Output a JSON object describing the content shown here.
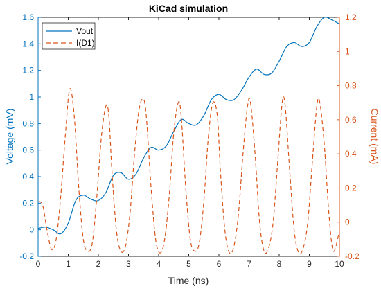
{
  "chart_data": {
    "type": "line",
    "title": "KiCad simulation",
    "xlabel": "Time (ns)",
    "ylabel_left": "Voltage (mV)",
    "ylabel_right": "Current (mA)",
    "xlim": [
      0,
      10
    ],
    "ylim_left": [
      -0.2,
      1.6
    ],
    "ylim_right": [
      -0.2,
      1.2
    ],
    "x_ticks": [
      "0",
      "1",
      "2",
      "3",
      "4",
      "5",
      "6",
      "7",
      "8",
      "9",
      "10"
    ],
    "y_left_ticks": [
      "-0.2",
      "0",
      "0.2",
      "0.4",
      "0.6",
      "0.8",
      "1",
      "1.2",
      "1.4",
      "1.6"
    ],
    "y_right_ticks": [
      "-0.2",
      "0",
      "0.2",
      "0.4",
      "0.6",
      "0.8",
      "1",
      "1.2"
    ],
    "legend_position": "top-left",
    "grid": false,
    "colors": {
      "left_axis": "#0072BD",
      "right_axis": "#D95319"
    },
    "series": [
      {
        "name": "Vout",
        "axis": "left",
        "style": "solid",
        "color": "#0072BD",
        "x": [
          0,
          0.25,
          0.5,
          0.75,
          1,
          1.25,
          1.5,
          1.75,
          2,
          2.25,
          2.5,
          2.75,
          3,
          3.25,
          3.5,
          3.75,
          4,
          4.25,
          4.5,
          4.75,
          5,
          5.25,
          5.5,
          5.75,
          6,
          6.25,
          6.5,
          6.75,
          7,
          7.25,
          7.5,
          7.75,
          8,
          8.25,
          8.5,
          8.75,
          9,
          9.25,
          9.5,
          9.75,
          10
        ],
        "y": [
          0.01,
          0.02,
          0.0,
          -0.03,
          0.05,
          0.22,
          0.26,
          0.23,
          0.22,
          0.28,
          0.41,
          0.43,
          0.38,
          0.42,
          0.54,
          0.62,
          0.6,
          0.63,
          0.74,
          0.83,
          0.8,
          0.79,
          0.86,
          0.98,
          1.02,
          0.98,
          0.98,
          1.05,
          1.15,
          1.21,
          1.17,
          1.18,
          1.27,
          1.38,
          1.41,
          1.38,
          1.41,
          1.53,
          1.6,
          1.58,
          1.55
        ]
      },
      {
        "name": "I(D1)",
        "axis": "right",
        "style": "dashed",
        "color": "#D95319",
        "x": [
          0,
          0.15,
          0.3,
          0.45,
          0.6,
          0.75,
          0.9,
          1.05,
          1.2,
          1.35,
          1.5,
          1.65,
          1.8,
          1.95,
          2.1,
          2.25,
          2.35,
          2.45,
          2.6,
          2.75,
          2.9,
          3.05,
          3.2,
          3.35,
          3.5,
          3.6,
          3.75,
          3.9,
          4.05,
          4.2,
          4.35,
          4.5,
          4.65,
          4.75,
          4.9,
          5.05,
          5.2,
          5.35,
          5.5,
          5.65,
          5.8,
          5.95,
          6.05,
          6.2,
          6.35,
          6.5,
          6.65,
          6.8,
          6.95,
          7.05,
          7.2,
          7.35,
          7.5,
          7.65,
          7.8,
          7.95,
          8.1,
          8.2,
          8.35,
          8.5,
          8.65,
          8.8,
          8.95,
          9.1,
          9.25,
          9.35,
          9.5,
          9.65,
          9.8,
          10
        ],
        "y": [
          0.12,
          0.1,
          -0.05,
          -0.16,
          -0.1,
          0.15,
          0.5,
          0.78,
          0.62,
          0.2,
          -0.1,
          -0.17,
          -0.12,
          0.15,
          0.5,
          0.68,
          0.62,
          0.3,
          -0.05,
          -0.17,
          -0.14,
          0.05,
          0.4,
          0.66,
          0.72,
          0.6,
          0.2,
          -0.1,
          -0.18,
          -0.1,
          0.15,
          0.52,
          0.7,
          0.62,
          0.2,
          -0.1,
          -0.17,
          -0.12,
          0.12,
          0.5,
          0.7,
          0.62,
          0.3,
          -0.05,
          -0.18,
          -0.14,
          0.05,
          0.4,
          0.68,
          0.7,
          0.4,
          0.0,
          -0.17,
          -0.15,
          0.0,
          0.35,
          0.7,
          0.68,
          0.3,
          -0.05,
          -0.18,
          -0.15,
          0.0,
          0.35,
          0.68,
          0.7,
          0.45,
          0.05,
          -0.17,
          -0.05
        ]
      }
    ]
  }
}
